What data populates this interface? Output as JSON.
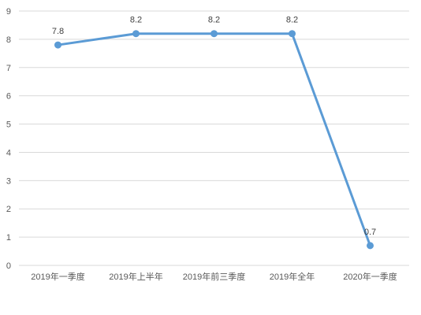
{
  "chart_data": {
    "type": "line",
    "title": "",
    "xlabel": "",
    "ylabel": "",
    "categories": [
      "2019年一季度",
      "2019年上半年",
      "2019年前三季度",
      "2019年全年",
      "2020年一季度"
    ],
    "series": [
      {
        "values": [
          7.8,
          8.2,
          8.2,
          8.2,
          0.7
        ],
        "data_labels": [
          "7.8",
          "8.2",
          "8.2",
          "8.2",
          "0.7"
        ],
        "color": "#5b9bd5"
      }
    ],
    "ylim": [
      0,
      9
    ],
    "y_ticks": [
      "0",
      "1",
      "2",
      "3",
      "4",
      "5",
      "6",
      "7",
      "8",
      "9"
    ],
    "grid": true,
    "legend": "none"
  }
}
